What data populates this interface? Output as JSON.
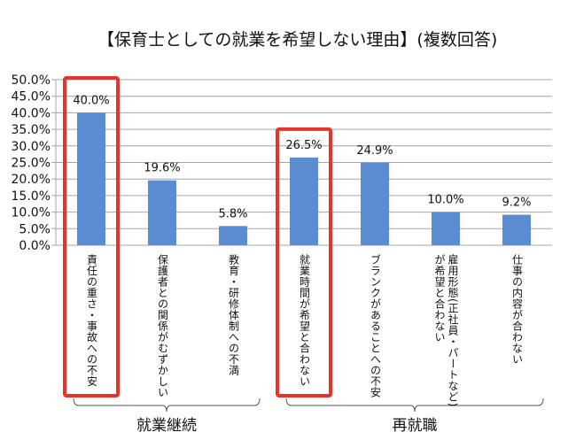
{
  "chart_data": {
    "type": "bar",
    "title": "【保育士としての就業を希望しない理由】(複数回答)",
    "categories": [
      "責任の重さ・事故への不安",
      "保護者との関係がむずかしい",
      "教育・研修体制への不満",
      "就業時間が希望と合わない",
      "ブランクがあることへの不安",
      "雇用形態(正社員・パートなど)\nが希望と合わない",
      "仕事の内容が合わない"
    ],
    "values": [
      40.0,
      19.6,
      5.8,
      26.5,
      24.9,
      10.0,
      9.2
    ],
    "data_labels": [
      "40.0%",
      "19.6%",
      "5.8%",
      "26.5%",
      "24.9%",
      "10.0%",
      "9.2%"
    ],
    "ylim": [
      0,
      50
    ],
    "yticks": [
      "0.0%",
      "5.0%",
      "10.0%",
      "15.0%",
      "20.0%",
      "25.0%",
      "30.0%",
      "35.0%",
      "40.0%",
      "45.0%",
      "50.0%"
    ],
    "grid": true,
    "groups": [
      {
        "label": "就業継続",
        "categories": [
          0,
          1,
          2
        ]
      },
      {
        "label": "再就職",
        "categories": [
          3,
          4,
          5,
          6
        ]
      }
    ],
    "highlighted": [
      0,
      3
    ],
    "colors": {
      "bar": "#5b8bd1",
      "highlight": "#e8332a",
      "grid": "#a6a6a6"
    }
  }
}
